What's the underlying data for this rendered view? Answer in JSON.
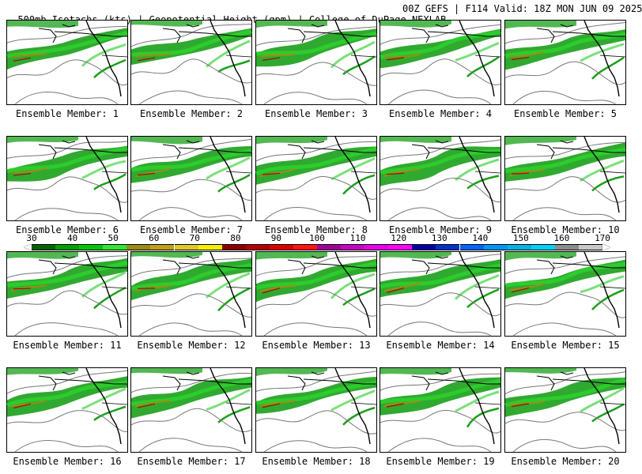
{
  "header": {
    "left": "500mb Isotachs (kts) | Geopotential Height (gpm) | College of DuPage NEXLAB",
    "right": "00Z GEFS | F114 Valid: 18Z MON JUN 09 2025"
  },
  "members": [
    {
      "label": "Ensemble Member: 1"
    },
    {
      "label": "Ensemble Member: 2"
    },
    {
      "label": "Ensemble Member: 3"
    },
    {
      "label": "Ensemble Member: 4"
    },
    {
      "label": "Ensemble Member: 5"
    },
    {
      "label": "Ensemble Member: 6"
    },
    {
      "label": "Ensemble Member: 7"
    },
    {
      "label": "Ensemble Member: 8"
    },
    {
      "label": "Ensemble Member: 9"
    },
    {
      "label": "Ensemble Member: 10"
    },
    {
      "label": "Ensemble Member: 11"
    },
    {
      "label": "Ensemble Member: 12"
    },
    {
      "label": "Ensemble Member: 13"
    },
    {
      "label": "Ensemble Member: 14"
    },
    {
      "label": "Ensemble Member: 15"
    },
    {
      "label": "Ensemble Member: 16"
    },
    {
      "label": "Ensemble Member: 17"
    },
    {
      "label": "Ensemble Member: 18"
    },
    {
      "label": "Ensemble Member: 19"
    },
    {
      "label": "Ensemble Member: 20"
    }
  ],
  "colorbar": {
    "labels": [
      "30",
      "40",
      "50",
      "60",
      "70",
      "80",
      "90",
      "100",
      "110",
      "120",
      "130",
      "140",
      "150",
      "160",
      "170"
    ],
    "colors": [
      "#006400",
      "#00a000",
      "#00c800",
      "#32e632",
      "#9a8c14",
      "#bea01e",
      "#dcc828",
      "#f0f000",
      "#8c0000",
      "#b40000",
      "#dc0000",
      "#ff1414",
      "#a0009a",
      "#c800c8",
      "#e600e6",
      "#ff00ff",
      "#0000a0",
      "#0032c8",
      "#0064ff",
      "#0096ff",
      "#00b4e6",
      "#00d2ff",
      "#8c8c8c",
      "#c8c8c8"
    ]
  }
}
